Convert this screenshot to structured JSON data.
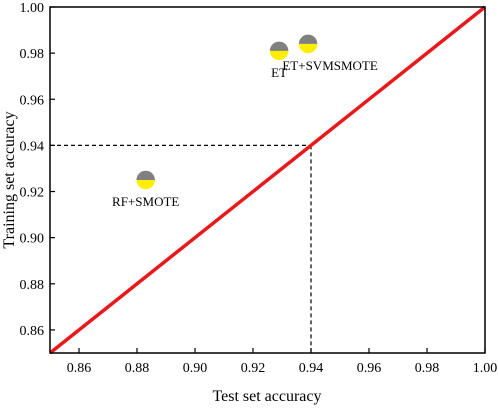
{
  "chart_data": {
    "type": "scatter",
    "xlabel": "Test set accuracy",
    "ylabel": "Training set accuracy",
    "xlim": [
      0.85,
      1.0
    ],
    "ylim": [
      0.85,
      1.0
    ],
    "xticks": [
      "0.86",
      "0.88",
      "0.90",
      "0.92",
      "0.94",
      "0.96",
      "0.98",
      "1.00"
    ],
    "yticks": [
      "0.86",
      "0.88",
      "0.90",
      "0.92",
      "0.94",
      "0.96",
      "0.98",
      "1.00"
    ],
    "grid": false,
    "points": [
      {
        "label": "RF+SMOTE",
        "x": 0.883,
        "y": 0.925
      },
      {
        "label": "ET",
        "x": 0.929,
        "y": 0.981
      },
      {
        "label": "ET+SVMSMOTE",
        "x": 0.939,
        "y": 0.984
      }
    ],
    "reference_line": {
      "type": "diagonal",
      "from": [
        0.85,
        0.85
      ],
      "to": [
        1.0,
        1.0
      ],
      "color": "#e8191b"
    },
    "guide_lines": {
      "x": 0.94,
      "y": 0.94,
      "style": "dashed"
    },
    "marker_colors": {
      "top": "#808080",
      "bottom": "#ffee00"
    }
  }
}
